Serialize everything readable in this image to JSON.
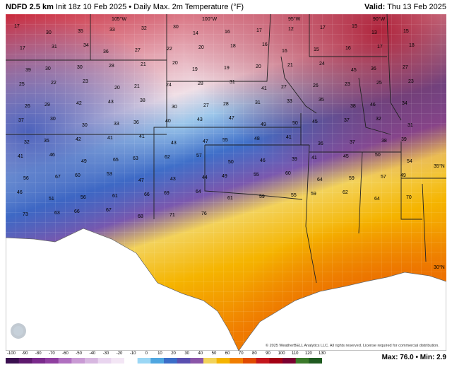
{
  "header": {
    "model": "NDFD 2.5 km",
    "init": "Init 18z 10 Feb 2025",
    "product": "Daily Max. 2m Temperature (°F)",
    "valid_label": "Valid:",
    "valid_time": "Thu 13 Feb 2025"
  },
  "footer": {
    "copyright": "© 2025 WeatherBELL Analytics LLC. All rights reserved. License required for commercial distribution.",
    "max_label": "Max: 76.0",
    "min_label": "Min: 2.9",
    "logo_text": "WeatherBELL"
  },
  "colorbar": {
    "ticks": [
      "-100",
      "-90",
      "-80",
      "-70",
      "-60",
      "-50",
      "-40",
      "-30",
      "-20",
      "-10",
      "0",
      "10",
      "20",
      "30",
      "40",
      "50",
      "60",
      "70",
      "80",
      "90",
      "100",
      "110",
      "120",
      "130"
    ],
    "colors": [
      "#3a0f4f",
      "#5e1a6e",
      "#7a2a8c",
      "#8f3fa0",
      "#b070c0",
      "#c99ad4",
      "#d7b7e0",
      "#e9d5ef",
      "#f3e6f5",
      "#ffffff",
      "#9bd7f5",
      "#4fa6e0",
      "#3b6dc8",
      "#5a4fb0",
      "#8a55a8",
      "#f2d35a",
      "#f5b400",
      "#f07d00",
      "#e04a00",
      "#c4161c",
      "#a30013",
      "#7a0030",
      "#3b7a2a",
      "#1f5a20"
    ],
    "accent_cold": "#3b6dc8",
    "accent_warm": "#f07d00"
  },
  "map_labels": {
    "meridians": [
      "105°W",
      "100°W",
      "95°W",
      "90°W"
    ],
    "parallels": [
      "35°N",
      "30°N"
    ]
  },
  "station_values": [
    {
      "t": "17"
    },
    {
      "t": "30"
    },
    {
      "t": "35"
    },
    {
      "t": "33"
    },
    {
      "t": "32"
    },
    {
      "t": "30"
    },
    {
      "t": "14"
    },
    {
      "t": "16"
    },
    {
      "t": "17"
    },
    {
      "t": "12"
    },
    {
      "t": "17"
    },
    {
      "t": "15"
    },
    {
      "t": "13"
    },
    {
      "t": "15"
    },
    {
      "t": "17"
    },
    {
      "t": "31"
    },
    {
      "t": "34"
    },
    {
      "t": "36"
    },
    {
      "t": "27"
    },
    {
      "t": "22"
    },
    {
      "t": "20"
    },
    {
      "t": "18"
    },
    {
      "t": "16"
    },
    {
      "t": "16"
    },
    {
      "t": "15"
    },
    {
      "t": "16"
    },
    {
      "t": "17"
    },
    {
      "t": "18"
    },
    {
      "t": "39"
    },
    {
      "t": "30"
    },
    {
      "t": "30"
    },
    {
      "t": "28"
    },
    {
      "t": "21"
    },
    {
      "t": "20"
    },
    {
      "t": "19"
    },
    {
      "t": "19"
    },
    {
      "t": "20"
    },
    {
      "t": "21"
    },
    {
      "t": "24"
    },
    {
      "t": "45"
    },
    {
      "t": "36"
    },
    {
      "t": "27"
    },
    {
      "t": "25"
    },
    {
      "t": "22"
    },
    {
      "t": "23"
    },
    {
      "t": "20"
    },
    {
      "t": "21"
    },
    {
      "t": "24"
    },
    {
      "t": "28"
    },
    {
      "t": "31"
    },
    {
      "t": "41"
    },
    {
      "t": "27"
    },
    {
      "t": "26"
    },
    {
      "t": "23"
    },
    {
      "t": "25"
    },
    {
      "t": "23"
    },
    {
      "t": "26"
    },
    {
      "t": "29"
    },
    {
      "t": "42"
    },
    {
      "t": "43"
    },
    {
      "t": "38"
    },
    {
      "t": "30"
    },
    {
      "t": "27"
    },
    {
      "t": "28"
    },
    {
      "t": "31"
    },
    {
      "t": "33"
    },
    {
      "t": "35"
    },
    {
      "t": "38"
    },
    {
      "t": "46"
    },
    {
      "t": "34"
    },
    {
      "t": "37"
    },
    {
      "t": "30"
    },
    {
      "t": "30"
    },
    {
      "t": "33"
    },
    {
      "t": "36"
    },
    {
      "t": "40"
    },
    {
      "t": "43"
    },
    {
      "t": "47"
    },
    {
      "t": "49"
    },
    {
      "t": "50"
    },
    {
      "t": "45"
    },
    {
      "t": "37"
    },
    {
      "t": "32"
    },
    {
      "t": "31"
    },
    {
      "t": "32"
    },
    {
      "t": "35"
    },
    {
      "t": "42"
    },
    {
      "t": "41"
    },
    {
      "t": "41"
    },
    {
      "t": "43"
    },
    {
      "t": "47"
    },
    {
      "t": "55"
    },
    {
      "t": "48"
    },
    {
      "t": "41"
    },
    {
      "t": "36"
    },
    {
      "t": "37"
    },
    {
      "t": "38"
    },
    {
      "t": "39"
    },
    {
      "t": "41"
    },
    {
      "t": "46"
    },
    {
      "t": "49"
    },
    {
      "t": "65"
    },
    {
      "t": "63"
    },
    {
      "t": "62"
    },
    {
      "t": "57"
    },
    {
      "t": "50"
    },
    {
      "t": "46"
    },
    {
      "t": "39"
    },
    {
      "t": "41"
    },
    {
      "t": "45"
    },
    {
      "t": "50"
    },
    {
      "t": "54"
    },
    {
      "t": "56"
    },
    {
      "t": "67"
    },
    {
      "t": "60"
    },
    {
      "t": "53"
    },
    {
      "t": "47"
    },
    {
      "t": "43"
    },
    {
      "t": "44"
    },
    {
      "t": "49"
    },
    {
      "t": "55"
    },
    {
      "t": "60"
    },
    {
      "t": "64"
    },
    {
      "t": "59"
    },
    {
      "t": "57"
    },
    {
      "t": "49"
    },
    {
      "t": "46"
    },
    {
      "t": "51"
    },
    {
      "t": "56"
    },
    {
      "t": "61"
    },
    {
      "t": "66"
    },
    {
      "t": "69"
    },
    {
      "t": "64"
    },
    {
      "t": "61"
    },
    {
      "t": "59"
    },
    {
      "t": "55"
    },
    {
      "t": "59"
    },
    {
      "t": "62"
    },
    {
      "t": "64"
    },
    {
      "t": "70"
    },
    {
      "t": "73"
    },
    {
      "t": "63"
    },
    {
      "t": "66"
    },
    {
      "t": "67"
    },
    {
      "t": "68"
    },
    {
      "t": "71"
    },
    {
      "t": "76"
    }
  ]
}
